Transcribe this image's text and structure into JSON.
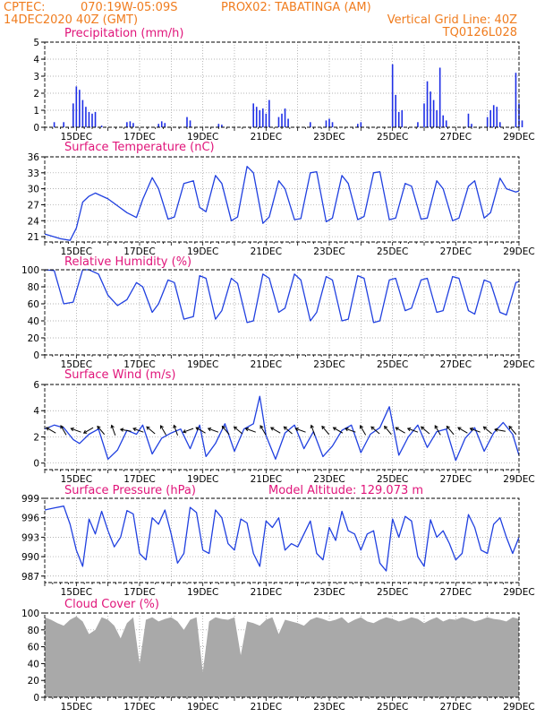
{
  "header": {
    "source": "CPTEC:",
    "coords": "070:19W-05:09S",
    "station": "PROX02: TABATINGA (AM)",
    "date": "14DEC2020 40Z (GMT)",
    "grid_note": "Vertical Grid Line: 40Z",
    "run_id": "TQ0126L028"
  },
  "x_labels": [
    "15DEC",
    "17DEC",
    "19DEC",
    "21DEC",
    "23DEC",
    "25DEC",
    "27DEC",
    "29DEC"
  ],
  "chart_data": [
    {
      "type": "bar",
      "title": "Precipitation (mm/h)",
      "ylim": [
        0,
        5
      ],
      "yticks": [
        "0",
        "1",
        "2",
        "3",
        "4",
        "5"
      ],
      "xlim_days": [
        14.0,
        29.0
      ],
      "color": "#1f2fe6",
      "x": [
        14.3,
        14.6,
        14.9,
        15.0,
        15.1,
        15.2,
        15.3,
        15.4,
        15.5,
        15.6,
        15.8,
        16.6,
        16.7,
        16.8,
        17.6,
        17.7,
        17.8,
        18.5,
        18.6,
        19.5,
        19.6,
        20.6,
        20.7,
        20.8,
        20.9,
        21.0,
        21.1,
        21.4,
        21.5,
        21.6,
        21.7,
        22.4,
        22.9,
        23.0,
        23.1,
        23.9,
        24.0,
        25.0,
        25.1,
        25.2,
        25.3,
        25.8,
        26.0,
        26.1,
        26.2,
        26.3,
        26.4,
        26.5,
        26.6,
        26.7,
        27.4,
        27.5,
        28.0,
        28.1,
        28.2,
        28.3,
        28.4,
        28.9,
        29.0,
        29.1
      ],
      "values": [
        0.3,
        0.3,
        1.4,
        2.4,
        2.2,
        1.6,
        1.2,
        0.9,
        0.8,
        0.9,
        0.1,
        0.3,
        0.35,
        0.25,
        0.2,
        0.35,
        0.25,
        0.6,
        0.4,
        0.2,
        0.15,
        1.4,
        1.2,
        1.0,
        1.1,
        0.8,
        1.6,
        0.6,
        0.8,
        1.1,
        0.5,
        0.3,
        0.4,
        0.5,
        0.3,
        0.2,
        0.3,
        3.7,
        1.9,
        0.9,
        1.0,
        0.3,
        1.4,
        2.7,
        2.1,
        1.6,
        1.0,
        3.5,
        0.7,
        0.4,
        0.8,
        0.2,
        0.6,
        1.0,
        1.3,
        1.2,
        0.3,
        3.2,
        1.4,
        0.4
      ]
    },
    {
      "type": "line",
      "title": "Surface Temperature (nC)",
      "ylim": [
        20,
        36
      ],
      "yticks": [
        "21",
        "24",
        "27",
        "30",
        "33",
        "36"
      ],
      "ytick_values": [
        21,
        24,
        27,
        30,
        33,
        36
      ],
      "series": [
        {
          "color": "#2040e0",
          "x": [
            14.0,
            14.5,
            14.8,
            15.0,
            15.2,
            15.4,
            15.6,
            16.0,
            16.3,
            16.6,
            16.9,
            17.1,
            17.4,
            17.6,
            17.9,
            18.1,
            18.4,
            18.7,
            18.9,
            19.1,
            19.4,
            19.6,
            19.9,
            20.1,
            20.4,
            20.6,
            20.9,
            21.1,
            21.4,
            21.6,
            21.9,
            22.1,
            22.4,
            22.6,
            22.9,
            23.1,
            23.4,
            23.6,
            23.9,
            24.1,
            24.4,
            24.6,
            24.9,
            25.1,
            25.4,
            25.6,
            25.9,
            26.1,
            26.4,
            26.6,
            26.9,
            27.1,
            27.4,
            27.6,
            27.9,
            28.1,
            28.4,
            28.6,
            28.9,
            29.0
          ],
          "values": [
            21.5,
            20.6,
            20.3,
            22.6,
            27.5,
            28.6,
            29.2,
            28.1,
            26.8,
            25.5,
            24.6,
            28.0,
            32.1,
            30.0,
            24.3,
            24.7,
            31.0,
            31.5,
            26.5,
            25.7,
            32.5,
            31.0,
            24.0,
            24.7,
            34.2,
            33.0,
            23.5,
            24.7,
            31.5,
            30.0,
            24.2,
            24.4,
            33.0,
            33.2,
            23.8,
            24.5,
            32.5,
            31.0,
            24.2,
            24.8,
            33.0,
            33.2,
            24.2,
            24.5,
            31.0,
            30.5,
            24.3,
            24.5,
            31.5,
            30.0,
            24.0,
            24.5,
            30.5,
            31.5,
            24.5,
            25.5,
            32.0,
            30.0,
            29.4,
            29.6
          ]
        }
      ]
    },
    {
      "type": "line",
      "title": "Relative Humidity (%)",
      "ylim": [
        0,
        100
      ],
      "yticks": [
        "0",
        "20",
        "40",
        "60",
        "80",
        "100"
      ],
      "ytick_values": [
        0,
        20,
        40,
        60,
        80,
        100
      ],
      "series": [
        {
          "color": "#2040e0",
          "x": [
            14.0,
            14.3,
            14.6,
            14.9,
            15.2,
            15.4,
            15.7,
            16.0,
            16.3,
            16.6,
            16.9,
            17.1,
            17.4,
            17.6,
            17.9,
            18.1,
            18.4,
            18.7,
            18.9,
            19.1,
            19.4,
            19.6,
            19.9,
            20.1,
            20.4,
            20.6,
            20.9,
            21.1,
            21.4,
            21.6,
            21.9,
            22.1,
            22.4,
            22.6,
            22.9,
            23.1,
            23.4,
            23.6,
            23.9,
            24.1,
            24.4,
            24.6,
            24.9,
            25.1,
            25.4,
            25.6,
            25.9,
            26.1,
            26.4,
            26.6,
            26.9,
            27.1,
            27.4,
            27.6,
            27.9,
            28.1,
            28.4,
            28.6,
            28.9,
            29.0
          ],
          "values": [
            100,
            99,
            60,
            62,
            100,
            100,
            95,
            70,
            58,
            65,
            85,
            80,
            50,
            60,
            88,
            85,
            42,
            45,
            93,
            90,
            42,
            52,
            90,
            84,
            38,
            40,
            95,
            90,
            50,
            55,
            95,
            88,
            40,
            50,
            92,
            88,
            40,
            42,
            93,
            90,
            38,
            40,
            88,
            90,
            52,
            55,
            88,
            90,
            50,
            52,
            92,
            90,
            52,
            48,
            88,
            85,
            50,
            47,
            85,
            86
          ]
        }
      ]
    },
    {
      "type": "line",
      "title": "Surface Wind (m/s)",
      "ylim": [
        -0.5,
        6
      ],
      "yticks": [
        "0",
        "2",
        "4",
        "6"
      ],
      "ytick_values": [
        0,
        2,
        4,
        6
      ],
      "series": [
        {
          "color": "#2040e0",
          "x": [
            14.0,
            14.3,
            14.6,
            14.9,
            15.1,
            15.4,
            15.7,
            16.0,
            16.3,
            16.6,
            16.9,
            17.1,
            17.4,
            17.7,
            18.0,
            18.3,
            18.6,
            18.9,
            19.1,
            19.4,
            19.7,
            20.0,
            20.3,
            20.6,
            20.8,
            21.0,
            21.3,
            21.6,
            21.9,
            22.2,
            22.5,
            22.8,
            23.1,
            23.4,
            23.7,
            24.0,
            24.3,
            24.6,
            24.9,
            25.2,
            25.5,
            25.8,
            26.1,
            26.4,
            26.7,
            27.0,
            27.3,
            27.6,
            27.9,
            28.2,
            28.5,
            28.8,
            29.0
          ],
          "values": [
            2.6,
            2.9,
            2.7,
            1.8,
            1.5,
            2.2,
            2.6,
            0.3,
            1.0,
            2.5,
            2.2,
            2.9,
            0.7,
            1.9,
            2.3,
            2.6,
            1.1,
            2.9,
            0.5,
            1.5,
            3.0,
            0.9,
            2.6,
            3.0,
            5.1,
            2.1,
            0.3,
            2.3,
            2.9,
            1.1,
            2.4,
            0.5,
            1.3,
            2.5,
            2.9,
            0.8,
            2.2,
            2.7,
            4.3,
            0.6,
            2.0,
            2.9,
            1.2,
            2.4,
            2.6,
            0.2,
            1.9,
            2.7,
            0.9,
            2.3,
            3.1,
            2.2,
            0.6
          ]
        }
      ],
      "arrow_direction_deg": [
        210,
        240,
        200,
        150,
        230,
        250,
        190,
        200,
        220,
        240,
        250,
        160,
        210,
        200,
        230,
        220,
        200,
        240,
        210,
        220,
        200,
        250,
        230,
        210,
        200,
        240,
        220,
        230,
        210,
        200,
        220,
        240,
        230,
        210,
        200,
        220,
        190,
        230
      ]
    },
    {
      "type": "line",
      "title": "Surface Pressure (hPa)",
      "annotation": "Model Altitude: 129.073 m",
      "ylim": [
        986,
        999
      ],
      "yticks": [
        "987",
        "990",
        "993",
        "996",
        "999"
      ],
      "ytick_values": [
        987,
        990,
        993,
        996,
        999
      ],
      "series": [
        {
          "color": "#2040e0",
          "x": [
            14.0,
            14.3,
            14.6,
            14.8,
            15.0,
            15.2,
            15.4,
            15.6,
            15.8,
            16.0,
            16.2,
            16.4,
            16.6,
            16.8,
            17.0,
            17.2,
            17.4,
            17.6,
            17.8,
            18.0,
            18.2,
            18.4,
            18.6,
            18.8,
            19.0,
            19.2,
            19.4,
            19.6,
            19.8,
            20.0,
            20.2,
            20.4,
            20.6,
            20.8,
            21.0,
            21.2,
            21.4,
            21.6,
            21.8,
            22.0,
            22.2,
            22.4,
            22.6,
            22.8,
            23.0,
            23.2,
            23.4,
            23.6,
            23.8,
            24.0,
            24.2,
            24.4,
            24.6,
            24.8,
            25.0,
            25.2,
            25.4,
            25.6,
            25.8,
            26.0,
            26.2,
            26.4,
            26.6,
            26.8,
            27.0,
            27.2,
            27.4,
            27.6,
            27.8,
            28.0,
            28.2,
            28.4,
            28.6,
            28.8,
            29.0
          ],
          "values": [
            997.2,
            997.5,
            997.8,
            995.0,
            991.0,
            988.5,
            995.8,
            993.5,
            997.0,
            994.0,
            991.5,
            993.0,
            997.1,
            996.6,
            990.5,
            989.5,
            996.0,
            995.0,
            997.2,
            993.5,
            989.0,
            990.5,
            997.6,
            996.8,
            991.0,
            990.5,
            997.2,
            996.0,
            992.0,
            991.0,
            995.8,
            995.2,
            990.5,
            988.5,
            995.5,
            994.5,
            996.0,
            991.0,
            992.0,
            991.5,
            993.5,
            995.5,
            990.5,
            989.5,
            994.5,
            992.5,
            997.0,
            994.0,
            993.5,
            991.0,
            993.5,
            994.0,
            989.0,
            987.8,
            995.8,
            993.0,
            996.2,
            995.5,
            990.0,
            988.5,
            995.7,
            993.0,
            994.0,
            992.0,
            989.5,
            990.5,
            996.5,
            994.5,
            991.0,
            990.5,
            995.0,
            996.0,
            993.0,
            990.5,
            993.0
          ]
        }
      ]
    },
    {
      "type": "area",
      "title": "Cloud Cover (%)",
      "ylim": [
        0,
        100
      ],
      "yticks": [
        "0",
        "20",
        "40",
        "60",
        "80",
        "100"
      ],
      "ytick_values": [
        0,
        20,
        40,
        60,
        80,
        100
      ],
      "fill": "#a9a9a9",
      "x": [
        14.0,
        14.2,
        14.4,
        14.6,
        14.8,
        15.0,
        15.2,
        15.4,
        15.6,
        15.8,
        16.0,
        16.2,
        16.4,
        16.6,
        16.8,
        17.0,
        17.2,
        17.4,
        17.6,
        17.8,
        18.0,
        18.2,
        18.4,
        18.6,
        18.8,
        19.0,
        19.2,
        19.4,
        19.6,
        19.8,
        20.0,
        20.2,
        20.4,
        20.6,
        20.8,
        21.0,
        21.2,
        21.4,
        21.6,
        21.8,
        22.0,
        22.2,
        22.4,
        22.6,
        22.8,
        23.0,
        23.2,
        23.4,
        23.6,
        23.8,
        24.0,
        24.2,
        24.4,
        24.6,
        24.8,
        25.0,
        25.2,
        25.4,
        25.6,
        25.8,
        26.0,
        26.2,
        26.4,
        26.6,
        26.8,
        27.0,
        27.2,
        27.4,
        27.6,
        27.8,
        28.0,
        28.2,
        28.4,
        28.6,
        28.8,
        29.0
      ],
      "values": [
        95,
        92,
        88,
        85,
        92,
        96,
        90,
        75,
        80,
        95,
        92,
        85,
        70,
        88,
        95,
        40,
        92,
        95,
        90,
        93,
        95,
        90,
        80,
        92,
        95,
        30,
        90,
        95,
        93,
        92,
        95,
        50,
        90,
        88,
        85,
        92,
        95,
        75,
        92,
        90,
        88,
        85,
        92,
        95,
        93,
        90,
        92,
        95,
        88,
        92,
        95,
        90,
        88,
        92,
        95,
        93,
        90,
        92,
        95,
        93,
        88,
        92,
        95,
        90,
        93,
        92,
        95,
        93,
        90,
        92,
        95,
        93,
        92,
        90,
        95,
        93
      ]
    }
  ]
}
